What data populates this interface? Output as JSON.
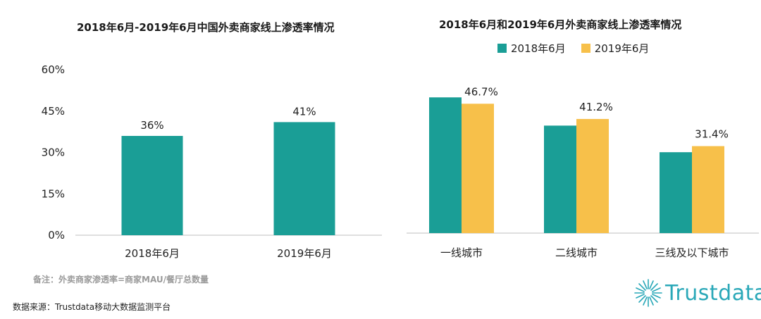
{
  "left_title": "2018年6月-2019年6月中国外卖商家线上渗透率情况",
  "right_title": "2018年6月和2019年6月外卖商家线上渗透率情况",
  "note": "备注：外卖商家渗透率=商家MAU/餐厅总数量",
  "source": "数据来源：Trustdata移动大数据监测平台",
  "logo_text": "Trustdata",
  "colors": {
    "teal": "#1a9e96",
    "yellow": "#f7c04a",
    "axis": "#bfbfbf",
    "text": "#222222",
    "logo": "#2aa8b8"
  },
  "chart_data": [
    {
      "type": "bar",
      "title": "2018年6月-2019年6月中国外卖商家线上渗透率情况",
      "categories": [
        "2018年6月",
        "2019年6月"
      ],
      "values": [
        36,
        41
      ],
      "data_labels": [
        "36%",
        "41%"
      ],
      "ylim": [
        0,
        60
      ],
      "yticks": [
        0,
        15,
        30,
        45,
        60
      ],
      "ytick_labels": [
        "0%",
        "15%",
        "30%",
        "45%",
        "60%"
      ],
      "grid": false
    },
    {
      "type": "bar",
      "title": "2018年6月和2019年6月外卖商家线上渗透率情况",
      "categories": [
        "一线城市",
        "二线城市",
        "三线及以下城市"
      ],
      "series": [
        {
          "name": "2018年6月",
          "values": [
            49.0,
            38.8,
            29.2
          ],
          "color": "#1a9e96"
        },
        {
          "name": "2019年6月",
          "values": [
            46.7,
            41.2,
            31.4
          ],
          "color": "#f7c04a",
          "data_labels": [
            "46.7%",
            "41.2%",
            "31.4%"
          ]
        }
      ],
      "ylim": [
        0,
        60
      ],
      "legend": "top",
      "grid": false
    }
  ]
}
